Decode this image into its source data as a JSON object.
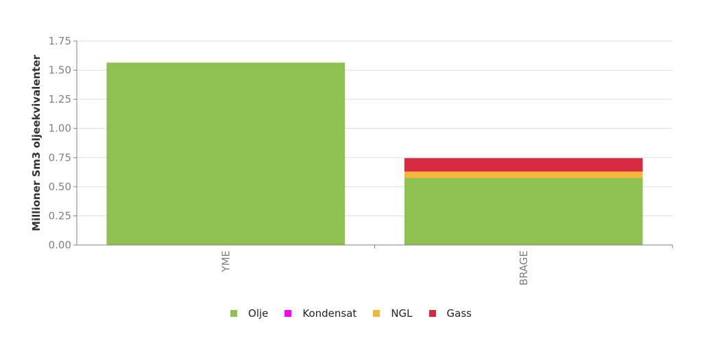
{
  "chart_data": {
    "type": "bar",
    "stacked": true,
    "categories": [
      "YME",
      "BRAGE"
    ],
    "series": [
      {
        "name": "Olje",
        "color": "#8fc151",
        "values": [
          1.565,
          0.575
        ]
      },
      {
        "name": "Kondensat",
        "color": "#ff00ff",
        "values": [
          0,
          0
        ]
      },
      {
        "name": "NGL",
        "color": "#f3b53a",
        "values": [
          0,
          0.055
        ]
      },
      {
        "name": "Gass",
        "color": "#d72a40",
        "values": [
          0,
          0.115
        ]
      }
    ],
    "ylabel": "Millioner Sm3 oljeekvivalenter",
    "xlabel": "",
    "ylim": [
      0,
      1.75
    ],
    "yticks": [
      "0.00",
      "0.25",
      "0.50",
      "0.75",
      "1.00",
      "1.25",
      "1.50",
      "1.75"
    ],
    "grid": true,
    "legend_position": "bottom"
  }
}
